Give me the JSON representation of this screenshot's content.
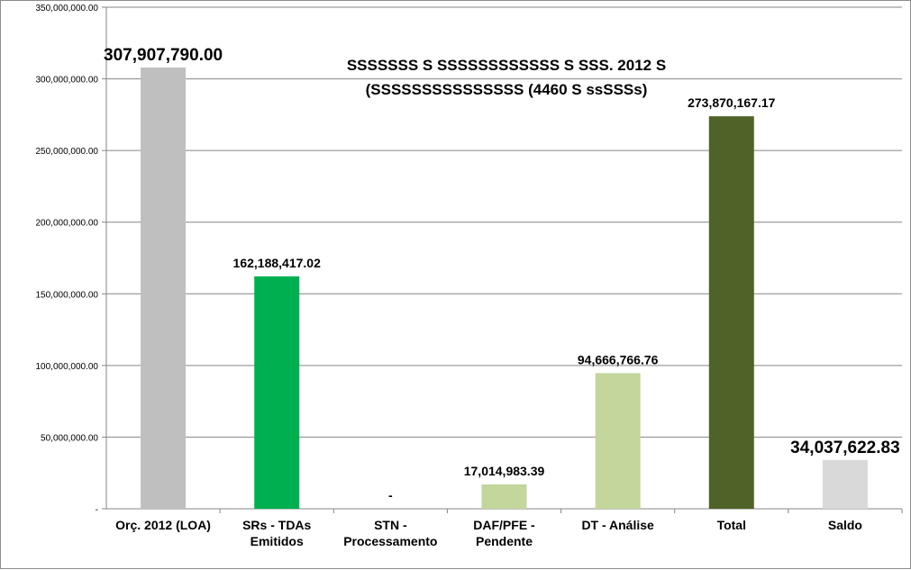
{
  "chart_data": {
    "type": "bar",
    "title_lines": [
      "SSSSSSS S SSSSSSSSSSSS  S  SSS. 2012 S",
      "(SSSSSSSSSSSSSSS (4460 S ssSSSs)"
    ],
    "categories": [
      [
        "Orç. 2012 (LOA)"
      ],
      [
        "SRs - TDAs",
        "Emitidos"
      ],
      [
        "STN -",
        "Processamento"
      ],
      [
        "DAF/PFE -",
        "Pendente"
      ],
      [
        "DT - Análise"
      ],
      [
        "Total"
      ],
      [
        "Saldo"
      ]
    ],
    "values": [
      307907790.0,
      162188417.02,
      0,
      17014983.39,
      94666766.76,
      273870167.17,
      34037622.83
    ],
    "value_labels": [
      "307,907,790.00",
      "162,188,417.02",
      "-",
      "17,014,983.39",
      "94,666,766.76",
      "273,870,167.17",
      "34,037,622.83"
    ],
    "bar_colors": [
      "#bfbfbf",
      "#00b050",
      "#00b050",
      "#c3d69b",
      "#c3d69b",
      "#4f6228",
      "#d9d9d9"
    ],
    "label_colors": [
      "#00b050",
      "#000000",
      "#000000",
      "#000000",
      "#000000",
      "#000000",
      "#77933c"
    ],
    "ylim": [
      0,
      350000000
    ],
    "yticks": [
      0,
      50000000,
      100000000,
      150000000,
      200000000,
      250000000,
      300000000,
      350000000
    ],
    "ytick_labels": [
      "-",
      "50,000,000.00",
      "100,000,000.00",
      "150,000,000.00",
      "200,000,000.00",
      "250,000,000.00",
      "300,000,000.00",
      "350,000,000.00"
    ],
    "grid": true,
    "legend": "none",
    "gridline_color": "#868686",
    "axis_color": "#868686"
  }
}
